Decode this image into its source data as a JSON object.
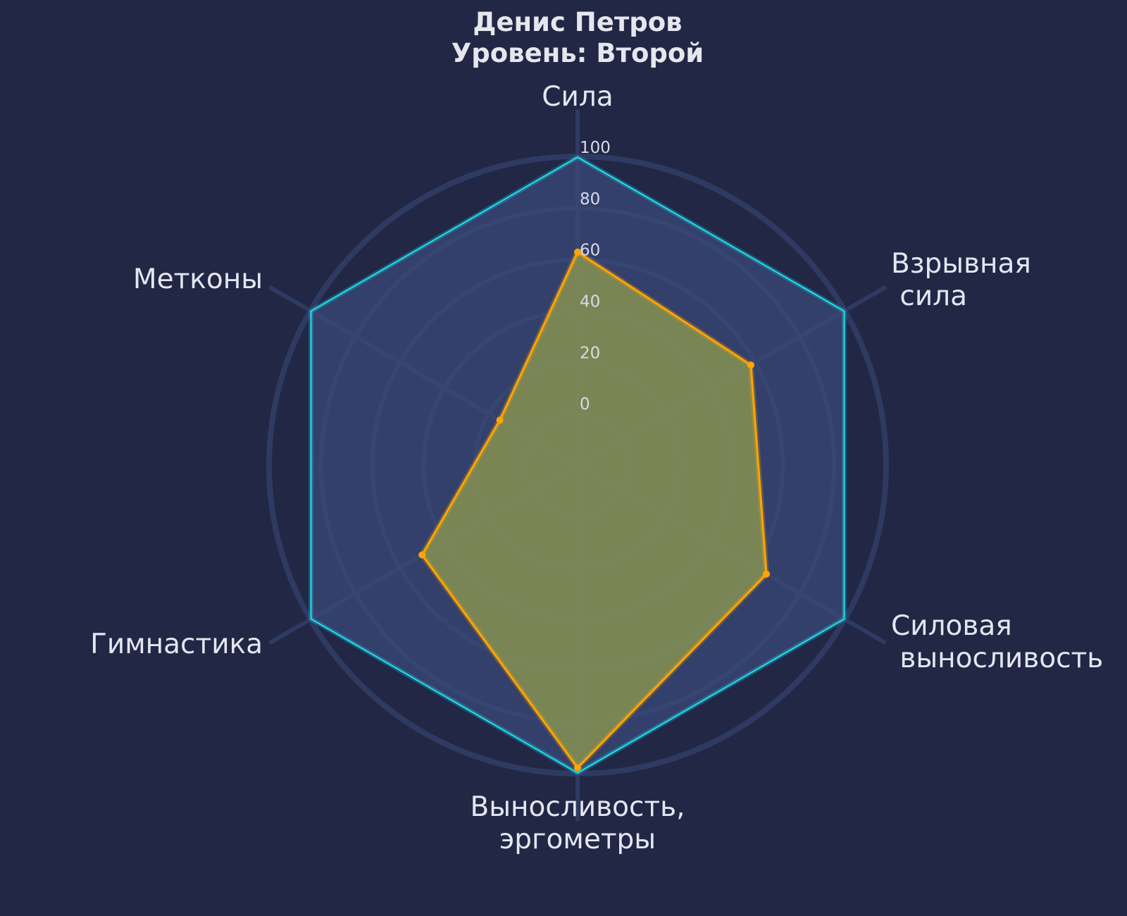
{
  "title": {
    "line1": "Денис Петров",
    "line2": "Уровень: Второй"
  },
  "chart_data": {
    "type": "radar",
    "axes": [
      [
        "Сила"
      ],
      [
        "Взрывная",
        " сила"
      ],
      [
        "Силовая",
        " выносливость"
      ],
      [
        "Выносливость,",
        "эргометры"
      ],
      [
        "Гимнастика"
      ],
      [
        "Метконы"
      ]
    ],
    "series": [
      {
        "values": [
          100,
          100,
          100,
          100,
          100,
          100
        ]
      },
      {
        "values": [
          63,
          58,
          65,
          98,
          50,
          15
        ]
      }
    ],
    "rlim": [
      -20,
      100
    ],
    "rticks": [
      0,
      20,
      40,
      60,
      80,
      100
    ],
    "rtick_labels": [
      "0",
      "20",
      "40",
      "60",
      "80",
      "100"
    ],
    "grid": true,
    "colors": {
      "background": "#212745",
      "grid": "#2f3a62",
      "reference_line": "#1ee0f0",
      "reference_fill": "#3a4a78",
      "athlete_line": "#ffa500",
      "athlete_fill": "#8c9650",
      "text": "#e4e6f0"
    }
  }
}
